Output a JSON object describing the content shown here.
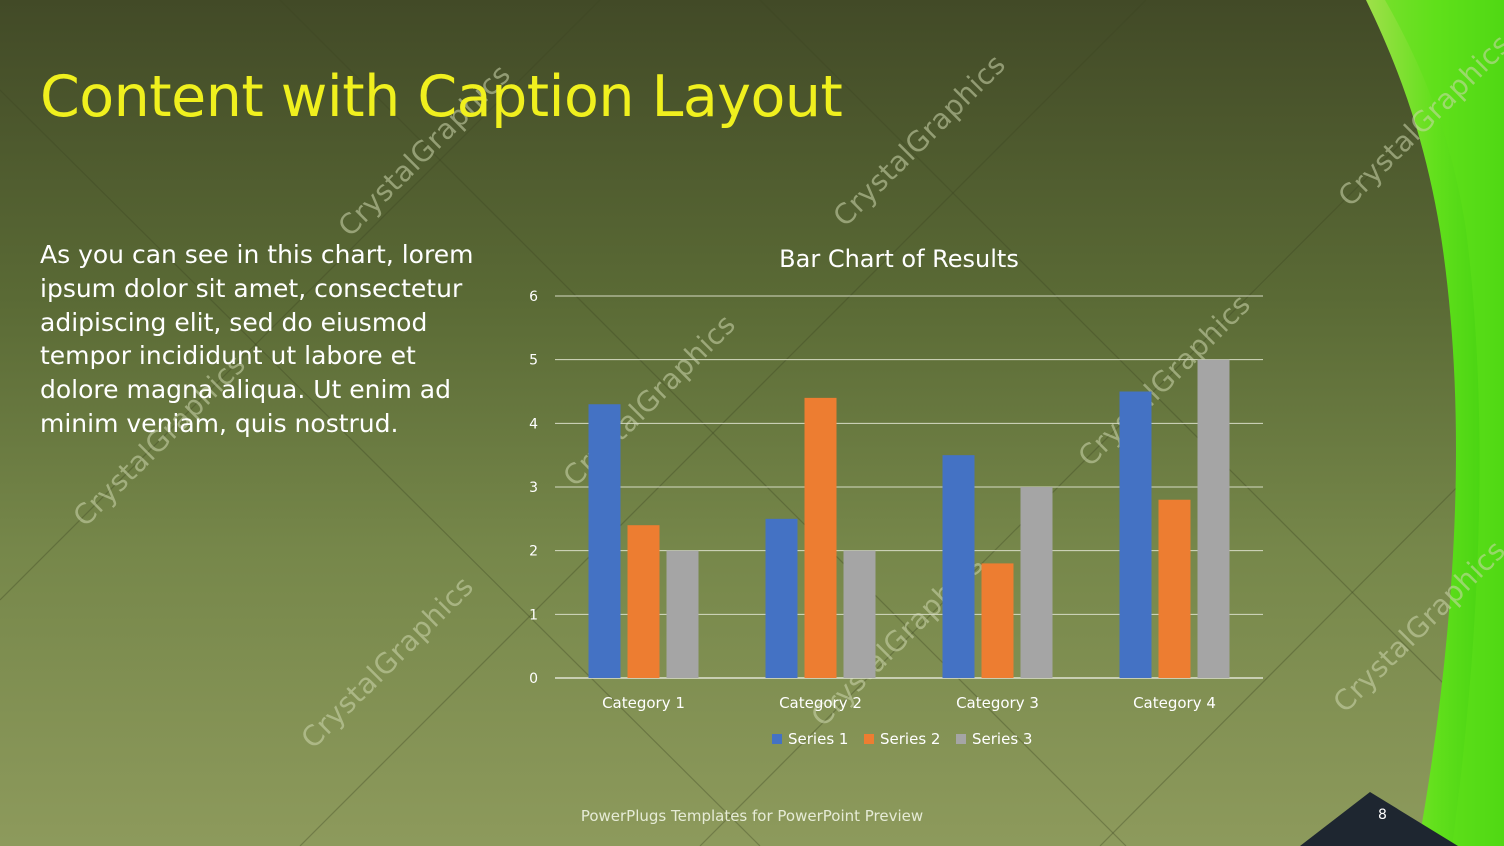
{
  "slide": {
    "title": "Content with Caption Layout",
    "caption": "As you can see in this chart, lorem ipsum dolor sit amet, consectetur adipiscing elit, sed do eiusmod tempor incididunt ut labore et dolore magna aliqua. Ut enim ad minim veniam, quis nostrud.",
    "footer": "PowerPlugs Templates for PowerPoint Preview",
    "page_number": "8",
    "watermark": "CrystalGraphics",
    "colors": {
      "title": "#f0f01e",
      "caption": "#ffffff",
      "accent_green": "#5ee01a"
    }
  },
  "chart_data": {
    "type": "bar",
    "title": "Bar Chart of Results",
    "categories": [
      "Category 1",
      "Category 2",
      "Category 3",
      "Category 4"
    ],
    "series": [
      {
        "name": "Series 1",
        "values": [
          4.3,
          2.5,
          3.5,
          4.5
        ],
        "color": "#4472c4"
      },
      {
        "name": "Series 2",
        "values": [
          2.4,
          4.4,
          1.8,
          2.8
        ],
        "color": "#ed7d31"
      },
      {
        "name": "Series 3",
        "values": [
          2,
          2,
          3,
          5
        ],
        "color": "#a5a5a5"
      }
    ],
    "ylim": [
      0,
      6
    ],
    "yticks": [
      "0",
      "1",
      "2",
      "3",
      "4",
      "5",
      "6"
    ],
    "grid": true,
    "legend": "bottom"
  }
}
